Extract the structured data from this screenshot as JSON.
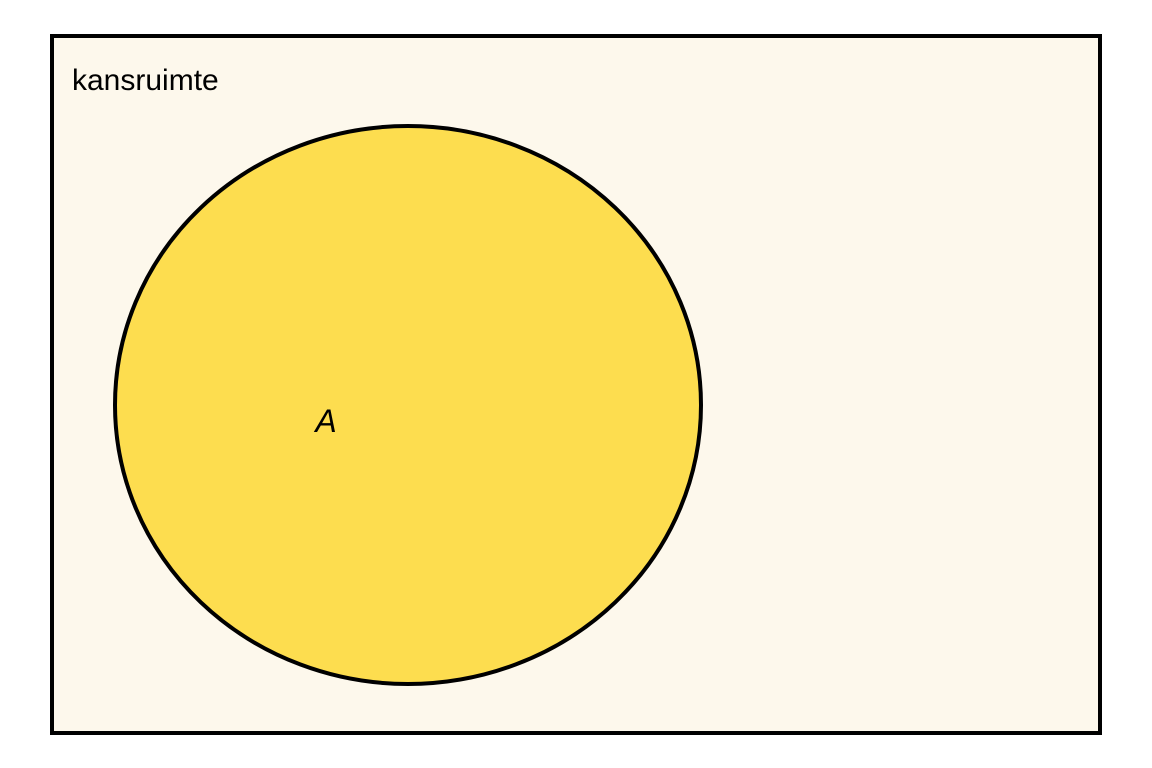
{
  "sample_space": {
    "label": "kansruimte",
    "fill_color": "#fdf8ec",
    "stroke_color": "#000000"
  },
  "event_a": {
    "label": "A",
    "fill_color": "#fddd4f",
    "stroke_color": "#000000"
  }
}
